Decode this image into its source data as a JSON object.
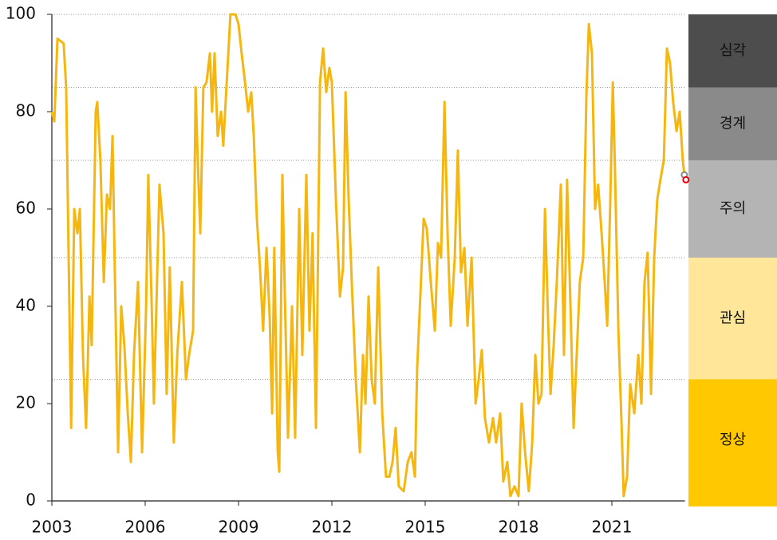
{
  "chart_data": {
    "type": "line",
    "x": [
      2003,
      2003.08,
      2003.18,
      2003.38,
      2003.46,
      2003.54,
      2003.62,
      2003.72,
      2003.82,
      2003.9,
      2004,
      2004.1,
      2004.21,
      2004.28,
      2004.41,
      2004.46,
      2004.56,
      2004.67,
      2004.77,
      2004.87,
      2004.95,
      2005.03,
      2005.13,
      2005.23,
      2005.33,
      2005.44,
      2005.54,
      2005.64,
      2005.77,
      2005.9,
      2006.03,
      2006.1,
      2006.21,
      2006.28,
      2006.46,
      2006.59,
      2006.69,
      2006.79,
      2006.92,
      2007.03,
      2007.18,
      2007.31,
      2007.41,
      2007.54,
      2007.62,
      2007.69,
      2007.77,
      2007.87,
      2007.97,
      2008.08,
      2008.15,
      2008.23,
      2008.33,
      2008.44,
      2008.51,
      2008.62,
      2008.74,
      2008.9,
      2009,
      2009.1,
      2009.21,
      2009.31,
      2009.41,
      2009.49,
      2009.59,
      2009.69,
      2009.79,
      2009.9,
      2010,
      2010.08,
      2010.15,
      2010.26,
      2010.31,
      2010.41,
      2010.49,
      2010.59,
      2010.72,
      2010.82,
      2010.95,
      2011.05,
      2011.18,
      2011.28,
      2011.38,
      2011.49,
      2011.62,
      2011.72,
      2011.82,
      2011.92,
      2012,
      2012.13,
      2012.26,
      2012.36,
      2012.44,
      2012.54,
      2012.64,
      2012.77,
      2012.9,
      2013,
      2013.08,
      2013.18,
      2013.28,
      2013.38,
      2013.49,
      2013.62,
      2013.74,
      2013.85,
      2013.95,
      2014.05,
      2014.15,
      2014.31,
      2014.44,
      2014.56,
      2014.67,
      2014.74,
      2014.85,
      2014.95,
      2015.05,
      2015.18,
      2015.31,
      2015.41,
      2015.51,
      2015.62,
      2015.72,
      2015.82,
      2015.95,
      2016.05,
      2016.15,
      2016.26,
      2016.36,
      2016.49,
      2016.62,
      2016.72,
      2016.82,
      2016.92,
      2017.05,
      2017.18,
      2017.28,
      2017.41,
      2017.51,
      2017.64,
      2017.74,
      2017.87,
      2018,
      2018.1,
      2018.21,
      2018.33,
      2018.44,
      2018.54,
      2018.64,
      2018.74,
      2018.85,
      2018.95,
      2019.03,
      2019.13,
      2019.23,
      2019.36,
      2019.46,
      2019.56,
      2019.67,
      2019.77,
      2019.87,
      2019.97,
      2020.08,
      2020.18,
      2020.26,
      2020.36,
      2020.46,
      2020.56,
      2020.67,
      2020.77,
      2020.85,
      2020.95,
      2021.03,
      2021.1,
      2021.21,
      2021.31,
      2021.38,
      2021.49,
      2021.59,
      2021.72,
      2021.85,
      2021.95,
      2022.05,
      2022.15,
      2022.26,
      2022.36,
      2022.46,
      2022.56,
      2022.67,
      2022.77,
      2022.87,
      2022.97,
      2023.08,
      2023.18,
      2023.28,
      2023.33
    ],
    "series": [
      {
        "color": "#f5b70f",
        "values": [
          80,
          78,
          95,
          94,
          85,
          50,
          15,
          60,
          55,
          60,
          30,
          15,
          42,
          32,
          80,
          82,
          70,
          45,
          63,
          60,
          75,
          45,
          10,
          40,
          32,
          18,
          8,
          30,
          45,
          10,
          40,
          67,
          40,
          20,
          65,
          55,
          22,
          48,
          12,
          30,
          45,
          25,
          30,
          35,
          85,
          70,
          55,
          85,
          86,
          92,
          80,
          92,
          75,
          80,
          73,
          86,
          100,
          100,
          98,
          92,
          86,
          80,
          84,
          75,
          58,
          48,
          35,
          52,
          38,
          18,
          52,
          10,
          6,
          67,
          42,
          13,
          40,
          13,
          60,
          30,
          67,
          35,
          55,
          15,
          86,
          93,
          84,
          89,
          86,
          62,
          42,
          48,
          84,
          62,
          45,
          25,
          10,
          30,
          20,
          42,
          25,
          20,
          48,
          18,
          5,
          5,
          8,
          15,
          3,
          2,
          8,
          10,
          5,
          27,
          43,
          58,
          56,
          45,
          35,
          53,
          50,
          82,
          55,
          36,
          50,
          72,
          47,
          52,
          36,
          50,
          20,
          25,
          31,
          17,
          12,
          17,
          12,
          18,
          4,
          8,
          1,
          3,
          1,
          20,
          10,
          2,
          12,
          30,
          20,
          22,
          60,
          37,
          22,
          32,
          45,
          65,
          30,
          66,
          40,
          15,
          30,
          45,
          50,
          83,
          98,
          92,
          60,
          65,
          55,
          45,
          36,
          62,
          86,
          68,
          35,
          16,
          1,
          5,
          24,
          18,
          30,
          20,
          45,
          51,
          22,
          50,
          62,
          66,
          70,
          93,
          90,
          82,
          76,
          80,
          70,
          67
        ]
      }
    ],
    "points": [
      {
        "x": 2023.33,
        "value": 67,
        "color": "#888888"
      },
      {
        "x": 2023.38,
        "value": 66,
        "color": "#e8000b"
      }
    ],
    "bands": [
      {
        "label": "정상",
        "from": 0,
        "to": 25,
        "color": "#ffc800"
      },
      {
        "label": "관심",
        "from": 25,
        "to": 50,
        "color": "#ffe699"
      },
      {
        "label": "주의",
        "from": 50,
        "to": 70,
        "color": "#b4b4b4"
      },
      {
        "label": "경계",
        "from": 70,
        "to": 85,
        "color": "#8a8a8a"
      },
      {
        "label": "심각",
        "from": 85,
        "to": 100,
        "color": "#4d4d4d"
      }
    ],
    "xlim": [
      2003,
      2023.4
    ],
    "xticks": [
      2003,
      2006,
      2009,
      2012,
      2015,
      2018,
      2021
    ],
    "ylim": [
      0,
      100
    ],
    "yticks": [
      0,
      20,
      40,
      60,
      80,
      100
    ]
  }
}
